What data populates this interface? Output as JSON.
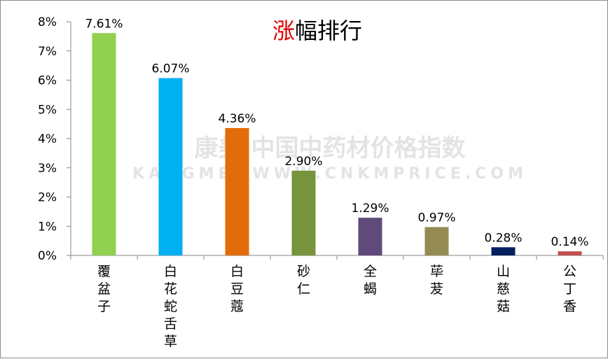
{
  "chart_data": {
    "type": "bar",
    "title_prefix": "涨",
    "title_rest": "幅排行",
    "categories": [
      "覆盆子",
      "白花蛇舌草",
      "白豆蔻",
      "砂仁",
      "全蝎",
      "荜茇",
      "山慈菇",
      "公丁香"
    ],
    "values": [
      7.61,
      6.07,
      4.36,
      2.9,
      1.29,
      0.97,
      0.28,
      0.14
    ],
    "data_labels": [
      "7.61%",
      "6.07%",
      "4.36%",
      "2.90%",
      "1.29%",
      "0.97%",
      "0.28%",
      "0.14%"
    ],
    "colors": [
      "#92d050",
      "#00b0f0",
      "#e36c09",
      "#77933c",
      "#604a7b",
      "#948a54",
      "#002060",
      "#c0504d"
    ],
    "title_accent_color": "#e00000",
    "y_ticks": [
      "0%",
      "1%",
      "2%",
      "3%",
      "4%",
      "5%",
      "6%",
      "7%",
      "8%"
    ],
    "ylim": [
      0,
      8
    ],
    "y_unit": "%",
    "grid": false,
    "legend": "none",
    "xlabel": "",
    "ylabel": ""
  },
  "watermark": {
    "line1": "康美·中国中药材价格指数",
    "line2": "KANGMEI  WWW.CNKMPRICE.COM"
  }
}
